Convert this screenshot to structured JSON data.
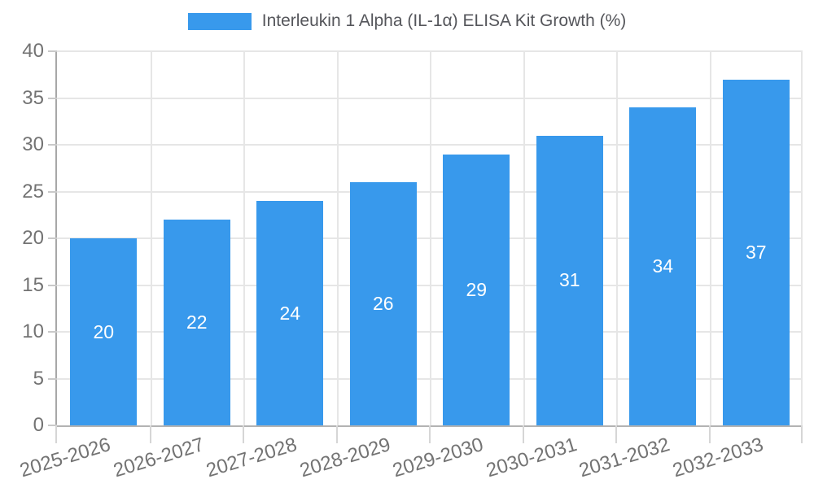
{
  "window": {
    "background": "#ffffff"
  },
  "legend": {
    "position": "top",
    "items": [
      {
        "label": "Interleukin 1 Alpha (IL-1α) ELISA Kit Growth (%)",
        "swatch_color": "#3899ec"
      }
    ]
  },
  "chart_data": {
    "type": "bar",
    "title": "",
    "categories": [
      "2025-2026",
      "2026-2027",
      "2027-2028",
      "2028-2029",
      "2029-2030",
      "2030-2031",
      "2031-2032",
      "2032-2033"
    ],
    "series": [
      {
        "name": "Interleukin 1 Alpha (IL-1α) ELISA Kit Growth (%)",
        "color": "#3899ec",
        "values": [
          20,
          22,
          24,
          26,
          29,
          31,
          34,
          37
        ]
      }
    ],
    "value_labels_inside_bars": true,
    "bar_value_label_color": "#ffffff",
    "xlabel": "",
    "ylabel": "",
    "ylim": [
      0,
      40
    ],
    "y_ticks": [
      0,
      5,
      10,
      15,
      20,
      25,
      30,
      35,
      40
    ],
    "grid": {
      "horizontal": true,
      "vertical": true,
      "color": "#e6e6e6"
    },
    "axis_color": "#b3b3b3",
    "tick_label_color": "#737373",
    "legend_position": "top",
    "x_tick_rotation_deg": -17
  }
}
